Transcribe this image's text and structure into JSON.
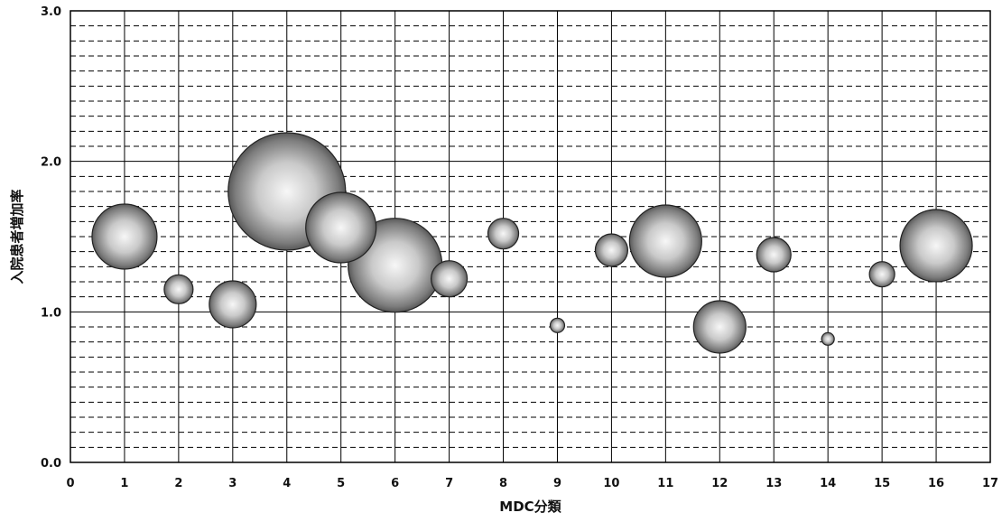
{
  "chart_data": {
    "type": "bubble",
    "title": "",
    "xlabel": "MDC分類",
    "ylabel": "入院患者増加率",
    "xlim": [
      0,
      17
    ],
    "ylim": [
      0.0,
      3.0
    ],
    "x_ticks": [
      "0",
      "1",
      "2",
      "3",
      "4",
      "5",
      "6",
      "7",
      "8",
      "9",
      "10",
      "11",
      "12",
      "13",
      "14",
      "15",
      "16",
      "17"
    ],
    "y_ticks": [
      "0.0",
      "1.0",
      "2.0",
      "3.0"
    ],
    "grid": true,
    "minor_y_step": 0.1,
    "points": [
      {
        "x": 1,
        "y": 1.5,
        "size": 36
      },
      {
        "x": 2,
        "y": 1.15,
        "size": 16
      },
      {
        "x": 3,
        "y": 1.05,
        "size": 26
      },
      {
        "x": 4,
        "y": 1.8,
        "size": 65
      },
      {
        "x": 5,
        "y": 1.56,
        "size": 39
      },
      {
        "x": 6,
        "y": 1.31,
        "size": 52
      },
      {
        "x": 7,
        "y": 1.22,
        "size": 20
      },
      {
        "x": 8,
        "y": 1.52,
        "size": 17
      },
      {
        "x": 9,
        "y": 0.91,
        "size": 8
      },
      {
        "x": 10,
        "y": 1.41,
        "size": 18
      },
      {
        "x": 11,
        "y": 1.47,
        "size": 40
      },
      {
        "x": 12,
        "y": 0.9,
        "size": 29
      },
      {
        "x": 13,
        "y": 1.38,
        "size": 19
      },
      {
        "x": 14,
        "y": 0.82,
        "size": 7
      },
      {
        "x": 15,
        "y": 1.25,
        "size": 14
      },
      {
        "x": 16,
        "y": 1.44,
        "size": 40
      }
    ],
    "colors": {
      "bubble_light": "#f4f4f4",
      "bubble_dark": "#4a4a4a",
      "grid": "#000000"
    }
  }
}
